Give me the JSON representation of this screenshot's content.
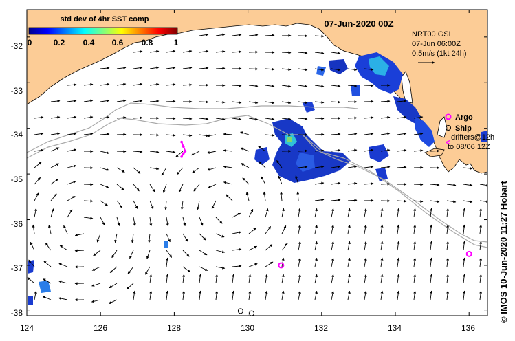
{
  "map": {
    "title": "07-Jun-2020 00Z",
    "credit": "© IMOS 10-Jun-2020 11:27 Hobart",
    "lat_ticks": [
      "-32",
      "-33",
      "-34",
      "-35",
      "-36",
      "-37",
      "-38"
    ],
    "lon_ticks": [
      "124",
      "126",
      "128",
      "130",
      "132",
      "134",
      "136"
    ],
    "lat_range": [
      -38.1,
      -31.4
    ],
    "lon_range": [
      124,
      136.5
    ],
    "colors": {
      "land": "#fccc96",
      "ocean": "#ffffff",
      "argo": "#ff00ff",
      "arrows": "#000000",
      "tracks": "#a9a9a9"
    }
  },
  "colorbar": {
    "label": "std dev of 4hr SST comp",
    "ticks": [
      "0",
      "0.2",
      "0.4",
      "0.6",
      "0.8",
      "1"
    ],
    "colormap": "jet"
  },
  "currents": {
    "model": "NRT00 GSL",
    "time": "07-Jun 06:00Z",
    "scale": "0.5m/s (1kt 24h)"
  },
  "legend": {
    "argo": "Argo",
    "ship": "Ship",
    "drifters_line1": "drifters@12h",
    "drifters_line2": "to 08/06 12Z"
  },
  "chart_data": {
    "type": "map",
    "argo_floats": [
      {
        "lon": 130.9,
        "lat": -37.0
      },
      {
        "lon": 136.0,
        "lat": -36.75
      }
    ],
    "ships": [
      {
        "lon": 129.8,
        "lat": -38.0
      },
      {
        "lon": 130.1,
        "lat": -38.05
      }
    ],
    "drifter_track": [
      {
        "lon": 128.2,
        "lat": -34.3
      },
      {
        "lon": 128.25,
        "lat": -34.4
      },
      {
        "lon": 128.3,
        "lat": -34.5
      },
      {
        "lon": 128.25,
        "lat": -34.55
      },
      {
        "lon": 128.2,
        "lat": -34.62
      }
    ]
  }
}
